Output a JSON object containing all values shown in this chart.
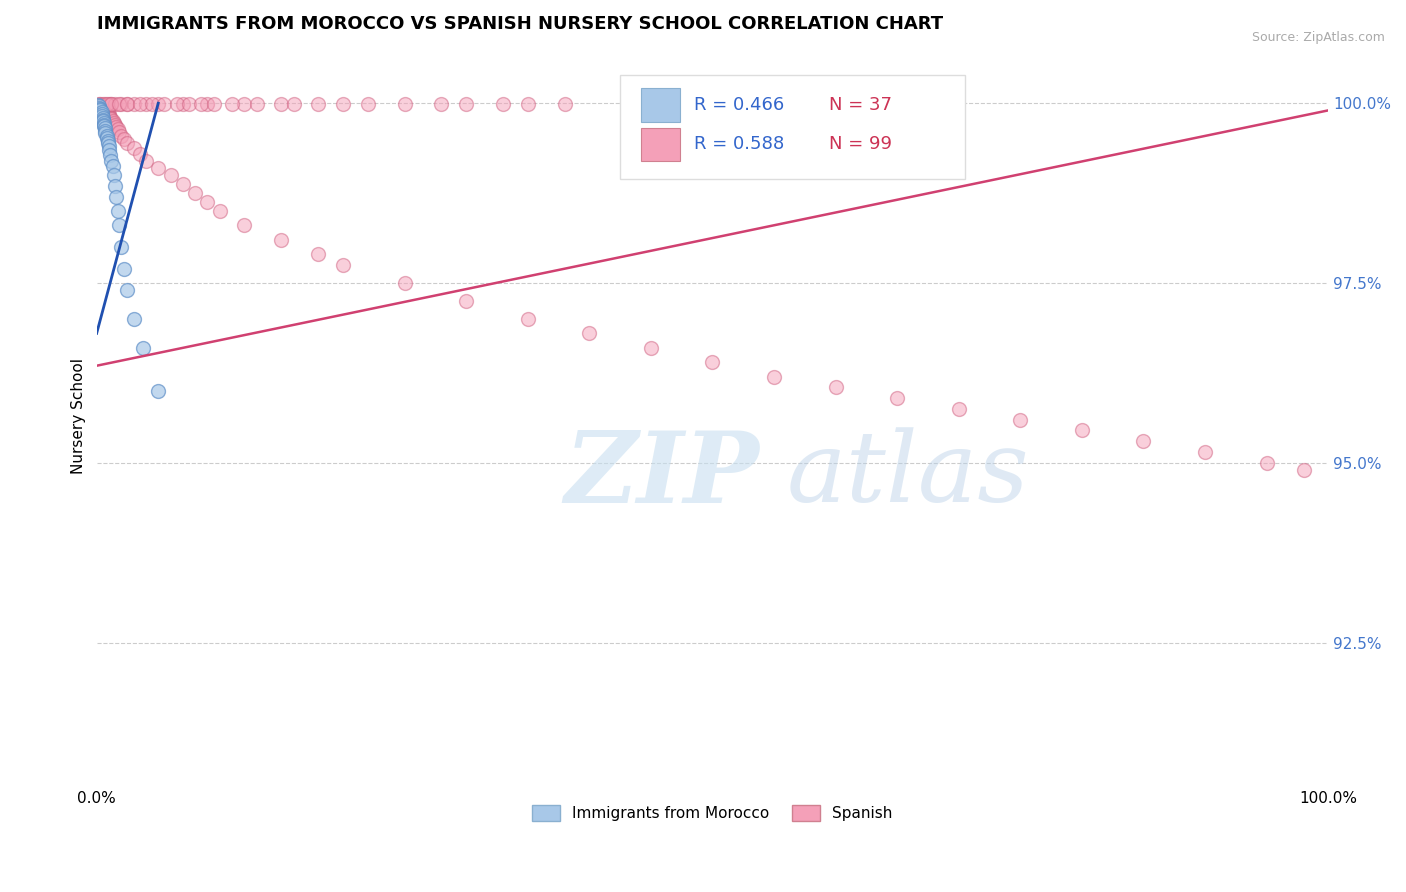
{
  "title": "IMMIGRANTS FROM MOROCCO VS SPANISH NURSERY SCHOOL CORRELATION CHART",
  "source_text": "Source: ZipAtlas.com",
  "ylabel": "Nursery School",
  "xmin": 0.0,
  "xmax": 1.0,
  "ymin": 0.905,
  "ymax": 1.008,
  "yticks": [
    0.925,
    0.95,
    0.975,
    1.0
  ],
  "ytick_labels": [
    "92.5%",
    "95.0%",
    "97.5%",
    "100.0%"
  ],
  "xtick_labels": [
    "0.0%",
    "100.0%"
  ],
  "legend_entries": [
    {
      "label": "Immigrants from Morocco",
      "color": "#a8c8e8"
    },
    {
      "label": "Spanish",
      "color": "#f4a0b8"
    }
  ],
  "blue_scatter": {
    "color": "#a8c8e8",
    "edge_color": "#6090c8",
    "alpha": 0.7,
    "size": 100,
    "x": [
      0.001,
      0.002,
      0.002,
      0.003,
      0.003,
      0.004,
      0.004,
      0.004,
      0.005,
      0.005,
      0.005,
      0.006,
      0.006,
      0.006,
      0.007,
      0.007,
      0.007,
      0.008,
      0.008,
      0.009,
      0.009,
      0.01,
      0.01,
      0.011,
      0.012,
      0.013,
      0.014,
      0.015,
      0.016,
      0.017,
      0.018,
      0.02,
      0.022,
      0.025,
      0.03,
      0.038,
      0.05
    ],
    "y": [
      0.9998,
      0.9996,
      0.9994,
      0.9992,
      0.999,
      0.9988,
      0.9985,
      0.9982,
      0.998,
      0.9977,
      0.9975,
      0.9972,
      0.997,
      0.9968,
      0.9965,
      0.9962,
      0.9958,
      0.9955,
      0.9952,
      0.9948,
      0.9945,
      0.994,
      0.9935,
      0.9928,
      0.992,
      0.9912,
      0.99,
      0.9885,
      0.987,
      0.985,
      0.983,
      0.98,
      0.977,
      0.974,
      0.97,
      0.966,
      0.96
    ]
  },
  "pink_scatter": {
    "color": "#f4a0b8",
    "edge_color": "#d06080",
    "alpha": 0.5,
    "size": 100,
    "x": [
      0.001,
      0.001,
      0.002,
      0.002,
      0.003,
      0.003,
      0.004,
      0.004,
      0.005,
      0.005,
      0.006,
      0.006,
      0.007,
      0.007,
      0.008,
      0.008,
      0.009,
      0.009,
      0.01,
      0.01,
      0.011,
      0.012,
      0.013,
      0.014,
      0.015,
      0.016,
      0.017,
      0.018,
      0.02,
      0.022,
      0.025,
      0.03,
      0.035,
      0.04,
      0.05,
      0.06,
      0.07,
      0.08,
      0.09,
      0.1,
      0.12,
      0.15,
      0.18,
      0.2,
      0.25,
      0.3,
      0.35,
      0.4,
      0.45,
      0.5,
      0.55,
      0.6,
      0.65,
      0.7,
      0.75,
      0.8,
      0.85,
      0.9,
      0.95,
      0.98,
      0.002,
      0.003,
      0.005,
      0.007,
      0.01,
      0.012,
      0.015,
      0.02,
      0.025,
      0.03,
      0.04,
      0.05,
      0.07,
      0.09,
      0.12,
      0.15,
      0.2,
      0.25,
      0.3,
      0.35,
      0.18,
      0.22,
      0.28,
      0.33,
      0.38,
      0.008,
      0.012,
      0.018,
      0.025,
      0.035,
      0.045,
      0.055,
      0.065,
      0.075,
      0.085,
      0.095,
      0.11,
      0.13,
      0.16
    ],
    "y": [
      0.9998,
      0.9996,
      0.9998,
      0.9995,
      0.9997,
      0.9993,
      0.9996,
      0.9994,
      0.9995,
      0.9992,
      0.9993,
      0.999,
      0.9991,
      0.9988,
      0.9989,
      0.9986,
      0.9987,
      0.9984,
      0.9985,
      0.9982,
      0.998,
      0.9978,
      0.9975,
      0.9972,
      0.997,
      0.9967,
      0.9964,
      0.996,
      0.9955,
      0.995,
      0.9945,
      0.9938,
      0.993,
      0.992,
      0.991,
      0.99,
      0.9888,
      0.9875,
      0.9862,
      0.985,
      0.983,
      0.981,
      0.979,
      0.9775,
      0.975,
      0.9725,
      0.97,
      0.968,
      0.966,
      0.964,
      0.962,
      0.9605,
      0.959,
      0.9575,
      0.956,
      0.9545,
      0.953,
      0.9515,
      0.95,
      0.949,
      0.9999,
      0.9999,
      0.9999,
      0.9999,
      0.9999,
      0.9999,
      0.9999,
      0.9999,
      0.9999,
      0.9999,
      0.9999,
      0.9999,
      0.9999,
      0.9999,
      0.9999,
      0.9999,
      0.9999,
      0.9999,
      0.9999,
      0.9999,
      0.9999,
      0.9999,
      0.9999,
      0.9999,
      0.9999,
      0.9999,
      0.9999,
      0.9999,
      0.9999,
      0.9999,
      0.9999,
      0.9999,
      0.9999,
      0.9999,
      0.9999,
      0.9999,
      0.9999,
      0.9999,
      0.9999
    ]
  },
  "blue_line": {
    "color": "#2050b0",
    "x_start": 0.0,
    "y_start": 0.968,
    "x_end": 0.05,
    "y_end": 1.0,
    "linewidth": 2.0
  },
  "pink_line": {
    "color": "#d04070",
    "x_start": 0.0,
    "y_start": 0.9635,
    "x_end": 1.0,
    "y_end": 0.999,
    "linewidth": 1.8
  },
  "watermark_zip": "ZIP",
  "watermark_atlas": "atlas",
  "background_color": "#ffffff",
  "grid_color": "#cccccc",
  "title_fontsize": 13,
  "axis_label_fontsize": 11,
  "tick_fontsize": 11,
  "legend_r_n": [
    {
      "R": "0.466",
      "N": "37"
    },
    {
      "R": "0.588",
      "N": "99"
    }
  ],
  "legend_box_color": "#a8c8e8",
  "legend_box_color2": "#f4a0b8"
}
